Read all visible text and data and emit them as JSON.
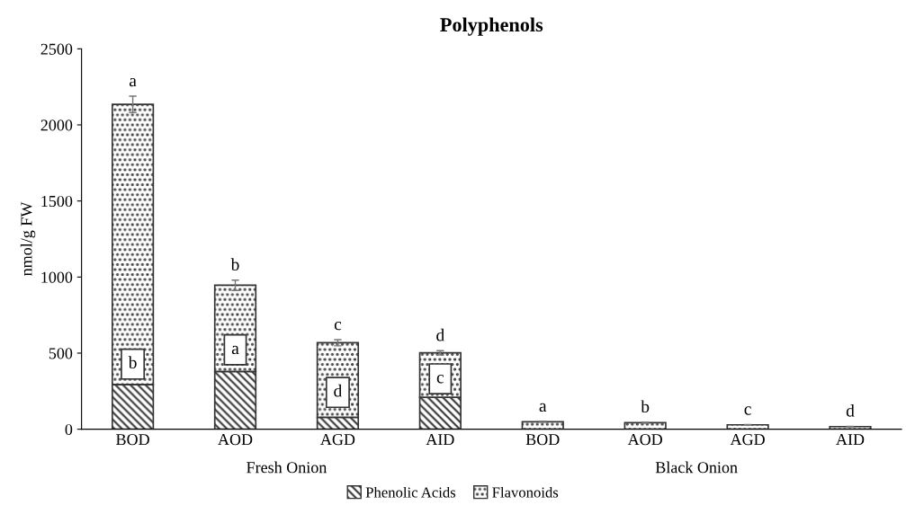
{
  "chart_data": {
    "type": "bar",
    "title": "Polyphenols",
    "ylabel": "nmol/g FW",
    "stacked": true,
    "categories": [
      "BOD",
      "AOD",
      "AGD",
      "AID",
      "BOD",
      "AOD",
      "AGD",
      "AID"
    ],
    "series": [
      {
        "name": "Phenolic Acids",
        "color": "#333333",
        "values": [
          294,
          379,
          78,
          210,
          null,
          null,
          null,
          null
        ]
      },
      {
        "name": "Flavonoids",
        "color": "#333333",
        "values": [
          1841,
          567,
          490,
          292,
          49,
          43,
          29,
          17
        ],
        "errors": [
          54,
          34,
          20,
          14,
          3,
          3,
          2,
          2
        ],
        "value_labels": [
          "a",
          "b",
          "c",
          "d",
          "a",
          "b",
          "c",
          "d"
        ]
      }
    ],
    "annotations": [
      "Fresh Onion",
      "Black Onion",
      {
        "text": "b",
        "x": "BOD",
        "y": 428
      },
      {
        "text": "a",
        "x": "AOD",
        "y": 522
      },
      {
        "text": "d",
        "x": "AGD",
        "y": 242
      },
      {
        "text": "c",
        "x": "AID",
        "y": 331
      }
    ],
    "ylim": [
      0,
      2500
    ],
    "yticks": [
      0,
      500,
      1000,
      1500,
      2000,
      2500
    ],
    "grid": false,
    "legend": "bottom"
  }
}
